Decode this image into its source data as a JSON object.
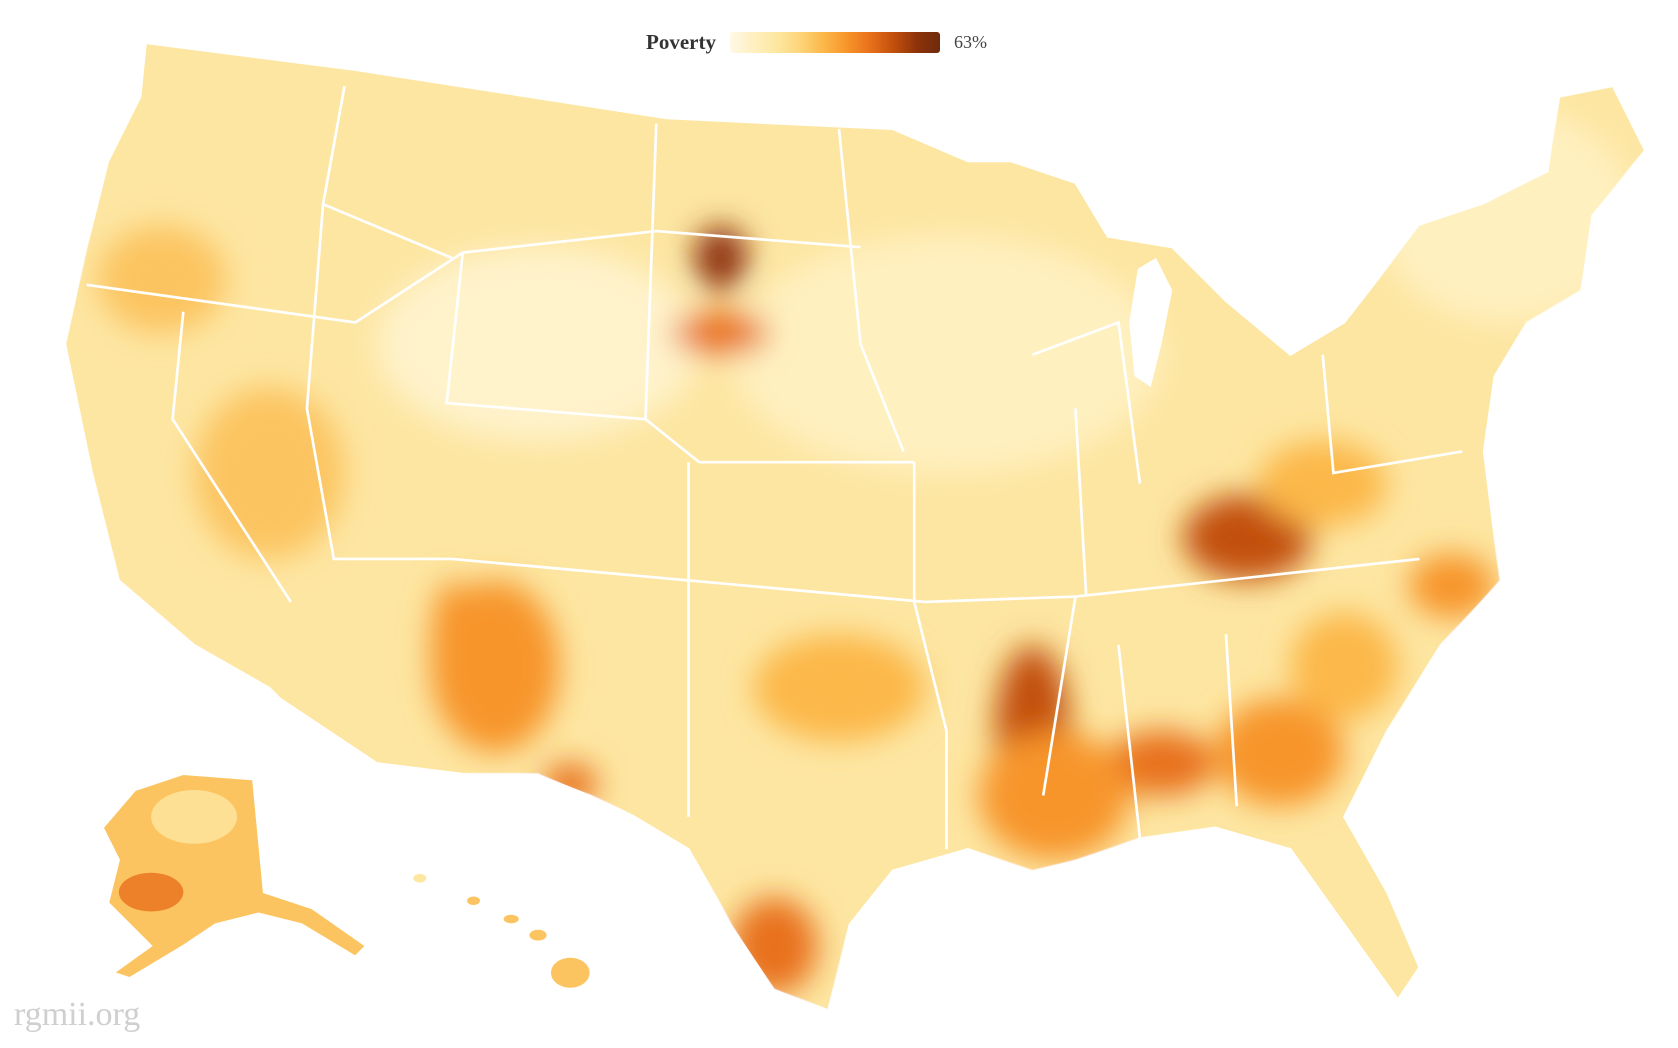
{
  "legend": {
    "title": "Poverty",
    "max_label": "63%",
    "colors": [
      "#fff8e6",
      "#fff0c0",
      "#fde7a0",
      "#fdd57a",
      "#fcb84a",
      "#f7952a",
      "#e8711c",
      "#c2500c",
      "#8e330a",
      "#6e2a0c"
    ]
  },
  "map": {
    "measure": "Poverty rate by county",
    "base_color": "#fde9a6",
    "border_color": "#ffffff"
  },
  "watermark": "rgmii.org"
}
